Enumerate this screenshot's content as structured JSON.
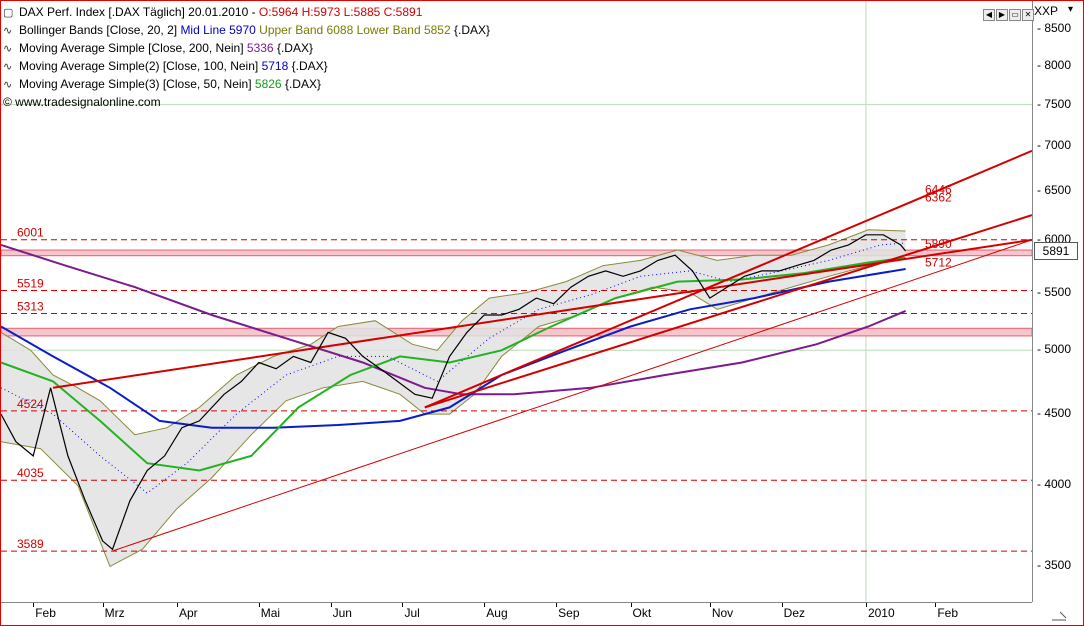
{
  "header": {
    "title": "DAX Perf. Index [.DAX  Täglich] 20.01.2010 - ",
    "ohlc": "O:5964 H:5973 L:5885 C:5891",
    "symbol": "XXP"
  },
  "legend": [
    {
      "prefix": "Bollinger Bands [Close, 20, 2] ",
      "parts": [
        {
          "text": "Mid Line 5970 ",
          "color": "blue"
        },
        {
          "text": "Upper Band 6088 Lower Band 5852 ",
          "color": "olive"
        },
        {
          "text": "{.DAX}",
          "color": "black"
        }
      ]
    },
    {
      "prefix": "Moving Average Simple [Close, 200, Nein] ",
      "parts": [
        {
          "text": "5336",
          "color": "purple"
        },
        {
          "text": " {.DAX}",
          "color": "black"
        }
      ]
    },
    {
      "prefix": "Moving Average Simple(2) [Close, 100, Nein] ",
      "parts": [
        {
          "text": "5718",
          "color": "blue"
        },
        {
          "text": " {.DAX}",
          "color": "black"
        }
      ]
    },
    {
      "prefix": "Moving Average Simple(3) [Close, 50, Nein] ",
      "parts": [
        {
          "text": "5826",
          "color": "green"
        },
        {
          "text": " {.DAX}",
          "color": "black"
        }
      ]
    }
  ],
  "watermark": "© www.tradesignalonline.com",
  "current_price": "5891",
  "colors": {
    "price": "#000000",
    "bb_fill": "#e2e2e2",
    "bb_band": "#8a8a3a",
    "mid": "#0000ff",
    "ma200": "#7b1c8c",
    "ma100": "#0a1ec8",
    "ma50": "#22b222",
    "trend": "#d40000",
    "zone": "#f7c6cc"
  },
  "chart_data": {
    "type": "line",
    "y_scale": "log",
    "ylim": [
      3300,
      8900
    ],
    "xlim": [
      "2009-01-20",
      "2010-03-12"
    ],
    "yticks": [
      3500,
      4000,
      4500,
      5000,
      5500,
      6000,
      6500,
      7000,
      7500,
      8000,
      8500
    ],
    "xticks": [
      {
        "label": "Feb",
        "date": "2009-02-02"
      },
      {
        "label": "Mrz",
        "date": "2009-03-02"
      },
      {
        "label": "Apr",
        "date": "2009-04-01"
      },
      {
        "label": "Mai",
        "date": "2009-05-04"
      },
      {
        "label": "Jun",
        "date": "2009-06-02"
      },
      {
        "label": "Jul",
        "date": "2009-07-01"
      },
      {
        "label": "Aug",
        "date": "2009-08-03"
      },
      {
        "label": "Sep",
        "date": "2009-09-01"
      },
      {
        "label": "Okt",
        "date": "2009-10-01"
      },
      {
        "label": "Nov",
        "date": "2009-11-02"
      },
      {
        "label": "Dez",
        "date": "2009-12-01"
      },
      {
        "label": "2010",
        "date": "2010-01-04"
      },
      {
        "label": "Feb",
        "date": "2010-02-01"
      }
    ],
    "grid": {
      "horizontal": [
        5000,
        7500
      ],
      "vertical": [
        "2010-01-04"
      ]
    },
    "series": [
      {
        "key": "price",
        "points": [
          [
            "2009-01-20",
            4500
          ],
          [
            "2009-01-26",
            4300
          ],
          [
            "2009-02-02",
            4200
          ],
          [
            "2009-02-09",
            4700
          ],
          [
            "2009-02-16",
            4200
          ],
          [
            "2009-02-23",
            3900
          ],
          [
            "2009-03-02",
            3650
          ],
          [
            "2009-03-06",
            3600
          ],
          [
            "2009-03-13",
            3900
          ],
          [
            "2009-03-20",
            4100
          ],
          [
            "2009-03-27",
            4200
          ],
          [
            "2009-04-03",
            4400
          ],
          [
            "2009-04-10",
            4450
          ],
          [
            "2009-04-20",
            4650
          ],
          [
            "2009-04-27",
            4750
          ],
          [
            "2009-05-04",
            4900
          ],
          [
            "2009-05-11",
            4850
          ],
          [
            "2009-05-18",
            4950
          ],
          [
            "2009-05-25",
            4900
          ],
          [
            "2009-06-01",
            5150
          ],
          [
            "2009-06-08",
            5100
          ],
          [
            "2009-06-15",
            4950
          ],
          [
            "2009-06-22",
            4850
          ],
          [
            "2009-06-29",
            4750
          ],
          [
            "2009-07-06",
            4650
          ],
          [
            "2009-07-13",
            4620
          ],
          [
            "2009-07-20",
            4950
          ],
          [
            "2009-07-27",
            5150
          ],
          [
            "2009-08-03",
            5300
          ],
          [
            "2009-08-10",
            5300
          ],
          [
            "2009-08-17",
            5350
          ],
          [
            "2009-08-24",
            5450
          ],
          [
            "2009-08-31",
            5400
          ],
          [
            "2009-09-07",
            5550
          ],
          [
            "2009-09-14",
            5650
          ],
          [
            "2009-09-21",
            5700
          ],
          [
            "2009-09-28",
            5650
          ],
          [
            "2009-10-05",
            5700
          ],
          [
            "2009-10-12",
            5800
          ],
          [
            "2009-10-19",
            5850
          ],
          [
            "2009-10-26",
            5700
          ],
          [
            "2009-11-02",
            5450
          ],
          [
            "2009-11-09",
            5550
          ],
          [
            "2009-11-16",
            5650
          ],
          [
            "2009-11-23",
            5700
          ],
          [
            "2009-11-30",
            5700
          ],
          [
            "2009-12-07",
            5750
          ],
          [
            "2009-12-14",
            5800
          ],
          [
            "2009-12-21",
            5900
          ],
          [
            "2009-12-28",
            5950
          ],
          [
            "2010-01-04",
            6050
          ],
          [
            "2010-01-11",
            6050
          ],
          [
            "2010-01-18",
            5950
          ],
          [
            "2010-01-20",
            5891
          ]
        ]
      },
      {
        "key": "bb_upper",
        "points": [
          [
            "2009-01-20",
            5150
          ],
          [
            "2009-02-01",
            5000
          ],
          [
            "2009-02-10",
            4800
          ],
          [
            "2009-02-20",
            4700
          ],
          [
            "2009-03-01",
            4600
          ],
          [
            "2009-03-15",
            4350
          ],
          [
            "2009-03-28",
            4400
          ],
          [
            "2009-04-10",
            4550
          ],
          [
            "2009-04-25",
            4800
          ],
          [
            "2009-05-10",
            4950
          ],
          [
            "2009-05-25",
            5050
          ],
          [
            "2009-06-05",
            5200
          ],
          [
            "2009-06-20",
            5250
          ],
          [
            "2009-07-05",
            5050
          ],
          [
            "2009-07-15",
            5000
          ],
          [
            "2009-07-25",
            5250
          ],
          [
            "2009-08-05",
            5450
          ],
          [
            "2009-08-20",
            5500
          ],
          [
            "2009-09-05",
            5600
          ],
          [
            "2009-09-20",
            5750
          ],
          [
            "2009-10-05",
            5800
          ],
          [
            "2009-10-20",
            5900
          ],
          [
            "2009-11-05",
            5800
          ],
          [
            "2009-11-20",
            5850
          ],
          [
            "2009-12-05",
            5850
          ],
          [
            "2009-12-20",
            5950
          ],
          [
            "2010-01-05",
            6100
          ],
          [
            "2010-01-20",
            6088
          ]
        ]
      },
      {
        "key": "bb_lower",
        "points": [
          [
            "2009-01-20",
            4300
          ],
          [
            "2009-02-05",
            4250
          ],
          [
            "2009-02-20",
            4000
          ],
          [
            "2009-03-05",
            3500
          ],
          [
            "2009-03-18",
            3600
          ],
          [
            "2009-04-01",
            3850
          ],
          [
            "2009-04-15",
            4050
          ],
          [
            "2009-05-01",
            4350
          ],
          [
            "2009-05-15",
            4600
          ],
          [
            "2009-05-30",
            4700
          ],
          [
            "2009-06-15",
            4750
          ],
          [
            "2009-06-30",
            4650
          ],
          [
            "2009-07-10",
            4500
          ],
          [
            "2009-07-20",
            4500
          ],
          [
            "2009-07-30",
            4650
          ],
          [
            "2009-08-10",
            4950
          ],
          [
            "2009-08-25",
            5200
          ],
          [
            "2009-09-10",
            5300
          ],
          [
            "2009-09-25",
            5450
          ],
          [
            "2009-10-10",
            5550
          ],
          [
            "2009-10-25",
            5500
          ],
          [
            "2009-11-05",
            5350
          ],
          [
            "2009-11-20",
            5450
          ],
          [
            "2009-12-05",
            5550
          ],
          [
            "2009-12-20",
            5650
          ],
          [
            "2010-01-05",
            5750
          ],
          [
            "2010-01-20",
            5852
          ]
        ]
      },
      {
        "key": "bb_mid",
        "points": [
          [
            "2009-01-20",
            4700
          ],
          [
            "2009-02-10",
            4500
          ],
          [
            "2009-03-01",
            4200
          ],
          [
            "2009-03-20",
            3950
          ],
          [
            "2009-04-05",
            4150
          ],
          [
            "2009-04-25",
            4500
          ],
          [
            "2009-05-15",
            4800
          ],
          [
            "2009-06-05",
            4950
          ],
          [
            "2009-06-25",
            4950
          ],
          [
            "2009-07-15",
            4750
          ],
          [
            "2009-08-05",
            5100
          ],
          [
            "2009-08-25",
            5350
          ],
          [
            "2009-09-15",
            5480
          ],
          [
            "2009-10-05",
            5650
          ],
          [
            "2009-10-25",
            5700
          ],
          [
            "2009-11-10",
            5600
          ],
          [
            "2009-12-01",
            5700
          ],
          [
            "2009-12-20",
            5800
          ],
          [
            "2010-01-10",
            5950
          ],
          [
            "2010-01-20",
            5970
          ]
        ]
      },
      {
        "key": "ma200",
        "points": [
          [
            "2009-01-20",
            5950
          ],
          [
            "2009-02-15",
            5750
          ],
          [
            "2009-03-15",
            5550
          ],
          [
            "2009-04-15",
            5300
          ],
          [
            "2009-05-15",
            5100
          ],
          [
            "2009-06-15",
            4900
          ],
          [
            "2009-07-10",
            4700
          ],
          [
            "2009-07-25",
            4650
          ],
          [
            "2009-08-15",
            4650
          ],
          [
            "2009-09-15",
            4700
          ],
          [
            "2009-10-15",
            4800
          ],
          [
            "2009-11-15",
            4900
          ],
          [
            "2009-12-15",
            5050
          ],
          [
            "2010-01-05",
            5200
          ],
          [
            "2010-01-20",
            5336
          ]
        ]
      },
      {
        "key": "ma100",
        "points": [
          [
            "2009-01-20",
            5200
          ],
          [
            "2009-02-10",
            4950
          ],
          [
            "2009-03-05",
            4700
          ],
          [
            "2009-03-25",
            4450
          ],
          [
            "2009-04-15",
            4400
          ],
          [
            "2009-05-10",
            4400
          ],
          [
            "2009-06-05",
            4420
          ],
          [
            "2009-06-30",
            4450
          ],
          [
            "2009-07-20",
            4550
          ],
          [
            "2009-08-10",
            4800
          ],
          [
            "2009-09-05",
            5000
          ],
          [
            "2009-10-01",
            5200
          ],
          [
            "2009-10-25",
            5350
          ],
          [
            "2009-11-20",
            5450
          ],
          [
            "2009-12-20",
            5600
          ],
          [
            "2010-01-20",
            5718
          ]
        ]
      },
      {
        "key": "ma50",
        "points": [
          [
            "2009-01-20",
            4900
          ],
          [
            "2009-02-10",
            4750
          ],
          [
            "2009-03-01",
            4450
          ],
          [
            "2009-03-20",
            4150
          ],
          [
            "2009-04-10",
            4100
          ],
          [
            "2009-05-01",
            4200
          ],
          [
            "2009-05-20",
            4550
          ],
          [
            "2009-06-10",
            4800
          ],
          [
            "2009-06-30",
            4950
          ],
          [
            "2009-07-20",
            4900
          ],
          [
            "2009-08-10",
            5000
          ],
          [
            "2009-08-30",
            5200
          ],
          [
            "2009-09-25",
            5450
          ],
          [
            "2009-10-20",
            5600
          ],
          [
            "2009-11-15",
            5620
          ],
          [
            "2009-12-10",
            5680
          ],
          [
            "2010-01-05",
            5780
          ],
          [
            "2010-01-20",
            5826
          ]
        ]
      }
    ],
    "trendlines": [
      {
        "from": [
          "2009-02-10",
          4700
        ],
        "to": [
          "2010-03-12",
          6000
        ],
        "width": 2
      },
      {
        "from": [
          "2009-07-10",
          4550
        ],
        "to": [
          "2010-03-12",
          6950
        ],
        "width": 2
      },
      {
        "from": [
          "2009-07-10",
          4550
        ],
        "to": [
          "2010-03-12",
          6250
        ],
        "width": 2
      },
      {
        "from": [
          "2009-03-06",
          3590
        ],
        "to": [
          "2010-03-12",
          6000
        ],
        "width": 1
      }
    ],
    "zones": [
      [
        5120,
        5185
      ],
      [
        5845,
        5900
      ]
    ],
    "levels": [
      {
        "value": 6001,
        "label": "6001",
        "side": "left"
      },
      {
        "value": 5519,
        "label": "5519",
        "side": "left"
      },
      {
        "value": 5313,
        "label": "5313",
        "side": "left"
      },
      {
        "value": 4524,
        "label": "4524",
        "side": "left"
      },
      {
        "value": 4035,
        "label": "4035",
        "side": "left"
      },
      {
        "value": 3589,
        "label": "3589",
        "side": "left"
      },
      {
        "value": 6446,
        "label": "6446",
        "side": "right"
      },
      {
        "value": 6362,
        "label": "6362",
        "side": "right"
      },
      {
        "value": 5890,
        "label": "5890",
        "side": "right"
      },
      {
        "value": 5712,
        "label": "5712",
        "side": "right"
      }
    ]
  }
}
